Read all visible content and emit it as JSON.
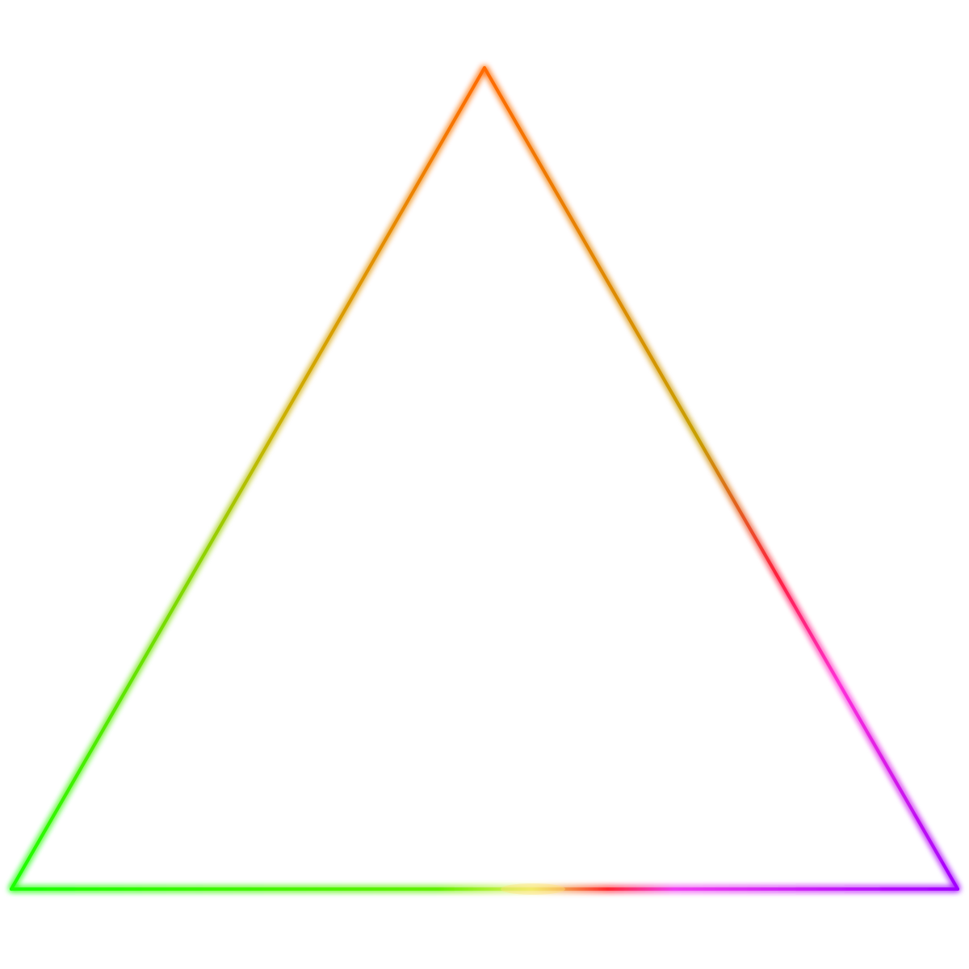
{
  "figure": {
    "shape": "triangle",
    "style": "neon-gradient-outline",
    "background_color": "#ffffff",
    "colors": {
      "apex": "#ff6a00",
      "left_mid": "#9ccf00",
      "bottom_left": "#1aff00",
      "right_hot": "#ff1f4b",
      "right_magenta": "#e020ff",
      "bottom_right": "#a000ff",
      "bottom_center_highlight": "#ffe27a"
    }
  }
}
